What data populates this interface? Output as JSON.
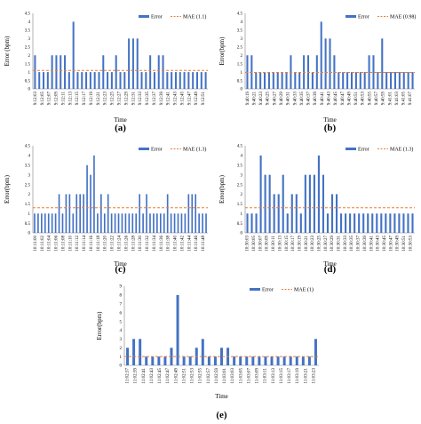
{
  "chart_data": [
    {
      "type": "bar",
      "panel_label": "(a)",
      "xlabel": "Time",
      "ylabel": "Error (bpm)",
      "ylim": [
        0,
        4.5
      ],
      "yticks": [
        "0",
        "0.5",
        "1",
        "1.5",
        "2",
        "2.5",
        "3",
        "3.5",
        "4",
        "4.5"
      ],
      "grid": false,
      "legend_position": "top-right",
      "series": [
        {
          "name": "Error",
          "color": "#4472C4",
          "values": [
            2,
            1,
            1,
            1,
            2,
            2,
            2,
            2,
            1,
            4,
            1,
            1,
            1,
            1,
            1,
            1,
            2,
            1,
            1,
            2,
            1,
            1,
            3,
            3,
            3,
            1,
            1,
            2,
            1,
            2,
            2,
            1,
            1,
            1,
            1,
            1,
            1,
            1,
            1,
            1,
            1
          ]
        },
        {
          "name": "MAE (1.1)",
          "color": "#ED7D31",
          "mae": 1.1
        }
      ],
      "xticklabels": [
        "9:12:03",
        "9:12:05",
        "9:12:07",
        "9:12:09",
        "9:12:11",
        "9:12:13",
        "9:12:15",
        "9:12:17",
        "9:12:19",
        "9:12:21",
        "9:12:23",
        "9:12:25",
        "9:12:27",
        "9:12:29",
        "9:12:31",
        "9:12:33",
        "9:12:35",
        "9:12:37",
        "9:12:39",
        "9:12:41",
        "9:12:43",
        "9:12:45",
        "9:12:47",
        "9:12:49",
        "9:12:51"
      ]
    },
    {
      "type": "bar",
      "panel_label": "(b)",
      "xlabel": "Time",
      "ylabel": "Error(bpm)",
      "ylim": [
        0,
        4.5
      ],
      "yticks": [
        "0",
        "0.5",
        "1",
        "1.5",
        "2",
        "2.5",
        "3",
        "3.5",
        "4",
        "4.5"
      ],
      "grid": false,
      "legend_position": "top-right",
      "series": [
        {
          "name": "Error",
          "color": "#4472C4",
          "values": [
            2,
            2,
            1,
            1,
            1,
            1,
            1,
            1,
            1,
            1,
            2,
            1,
            1,
            2,
            2,
            1,
            2,
            4,
            3,
            3,
            2,
            1,
            1,
            1,
            1,
            1,
            1,
            1,
            2,
            2,
            1,
            3,
            1,
            1,
            1,
            1,
            1,
            1,
            1
          ]
        },
        {
          "name": "MAE (0.98)",
          "color": "#ED7D31",
          "mae": 0.98
        }
      ],
      "xticklabels": [
        "9:40:19",
        "9:40:21",
        "9:40:23",
        "9:40:25",
        "9:40:27",
        "9:40:29",
        "9:40:31",
        "9:40:33",
        "9:40:35",
        "9:40:37",
        "9:40:39",
        "9:40:41",
        "9:40:43",
        "9:40:45",
        "9:40:47",
        "9:40:49",
        "9:40:51",
        "9:40:53",
        "9:40:55",
        "9:40:57",
        "9:40:59",
        "9:41:01",
        "9:41:03",
        "9:41:05",
        "9:41:07"
      ]
    },
    {
      "type": "bar",
      "panel_label": "(c)",
      "xlabel": "Time",
      "ylabel": "Error(bpm)",
      "ylim": [
        0,
        4.5
      ],
      "yticks": [
        "0",
        "0.5",
        "1",
        "1.5",
        "2",
        "2.5",
        "3",
        "3.5",
        "4",
        "4.5"
      ],
      "grid": false,
      "legend_position": "top-right",
      "series": [
        {
          "name": "Error",
          "color": "#4472C4",
          "values": [
            1,
            1,
            1,
            1,
            1,
            1,
            1,
            2,
            1,
            2,
            2,
            1,
            2,
            2,
            2,
            3.5,
            3,
            4,
            1,
            2,
            1,
            2,
            1,
            1,
            1,
            1,
            1,
            1,
            1,
            1,
            2,
            1,
            2,
            1,
            1,
            1,
            1,
            1,
            2,
            1,
            1,
            1,
            1,
            1,
            2,
            2,
            2,
            1,
            1,
            1
          ]
        },
        {
          "name": "MAE (1.3)",
          "color": "#ED7D31",
          "mae": 1.3
        }
      ],
      "xticklabels": [
        "10:11:00",
        "10:11:02",
        "10:11:04",
        "10:11:06",
        "10:11:08",
        "10:11:10",
        "10:11:12",
        "10:11:14",
        "10:11:16",
        "10:11:18",
        "10:11:20",
        "10:11:22",
        "10:11:24",
        "10:11:26",
        "10:11:28",
        "10:11:30",
        "10:11:32",
        "10:11:34",
        "10:11:36",
        "10:11:38",
        "10:11:40",
        "10:11:42",
        "10:11:44",
        "10:11:46",
        "10:11:48"
      ]
    },
    {
      "type": "bar",
      "panel_label": "(d)",
      "xlabel": "Time",
      "ylabel": "Error(bpm)",
      "ylim": [
        0,
        4.5
      ],
      "yticks": [
        "0",
        "0.5",
        "1",
        "1.5",
        "2",
        "2.5",
        "3",
        "3.5",
        "4",
        "4.5"
      ],
      "grid": false,
      "legend_position": "top-right",
      "series": [
        {
          "name": "Error",
          "color": "#4472C4",
          "values": [
            1,
            1,
            1,
            4,
            3,
            3,
            2,
            2,
            3,
            1,
            2,
            2,
            1,
            3,
            3,
            3,
            4,
            3,
            1,
            2,
            2,
            1,
            1,
            1,
            1,
            1,
            1,
            1,
            1,
            1,
            1,
            1,
            1,
            1,
            1,
            1,
            1,
            1
          ]
        },
        {
          "name": "MAE (1.3)",
          "color": "#ED7D31",
          "mae": 1.3
        }
      ],
      "xticklabels": [
        "10:30:03",
        "10:30:05",
        "10:30:07",
        "10:30:09",
        "10:30:11",
        "10:30:13",
        "10:30:15",
        "10:30:17",
        "10:30:19",
        "10:30:21",
        "10:30:23",
        "10:30:25",
        "10:30:27",
        "10:30:29",
        "10:30:31",
        "10:30:33",
        "10:30:35",
        "10:30:37",
        "10:30:39",
        "10:30:41",
        "10:30:43",
        "10:30:45",
        "10:30:47",
        "10:30:49",
        "10:30:51",
        "10:30:53"
      ]
    },
    {
      "type": "bar",
      "panel_label": "(e)",
      "xlabel": "Time",
      "ylabel": "Error(bpm)",
      "ylim": [
        0,
        9
      ],
      "yticks": [
        "0",
        "1",
        "2",
        "3",
        "4",
        "5",
        "6",
        "7",
        "8",
        "9"
      ],
      "grid": false,
      "legend_position": "top-right",
      "series": [
        {
          "name": "Error",
          "color": "#4472C4",
          "values": [
            2,
            3,
            3,
            1,
            1,
            1,
            1,
            2,
            8,
            1,
            1,
            2,
            3,
            1,
            1,
            2,
            2,
            1,
            1,
            1,
            1,
            1,
            1,
            1,
            1,
            1,
            1,
            1,
            1,
            1,
            3
          ]
        },
        {
          "name": "MAE (1)",
          "color": "#ED7D31",
          "mae": 1
        }
      ],
      "xticklabels": [
        "11:02:37",
        "11:02:39",
        "11:02:41",
        "11:02:43",
        "11:02:45",
        "11:02:47",
        "11:02:49",
        "11:02:51",
        "11:02:53",
        "11:02:55",
        "11:02:57",
        "11:02:59",
        "11:03:01",
        "11:03:03",
        "11:03:05",
        "11:03:07",
        "11:03:09",
        "11:03:11",
        "11:03:13",
        "11:03:15",
        "11:03:17",
        "11:03:19",
        "11:03:21",
        "11:03:23"
      ]
    }
  ]
}
